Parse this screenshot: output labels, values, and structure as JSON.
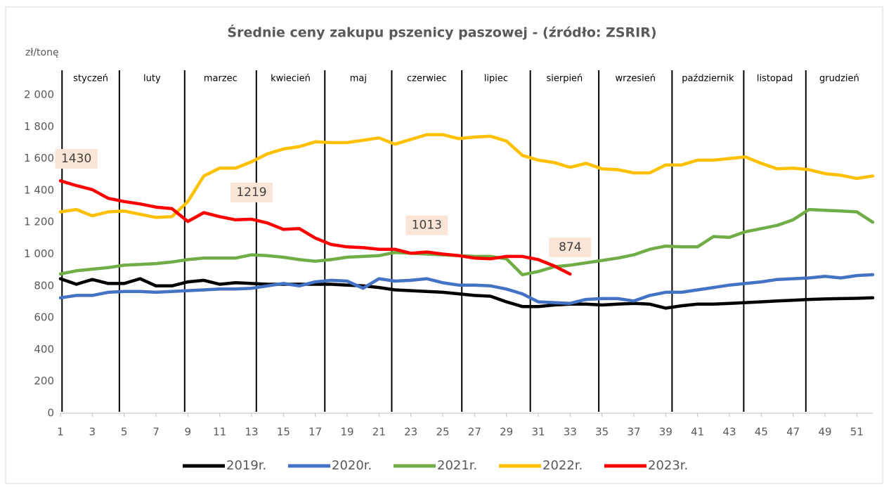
{
  "chart_data": {
    "type": "line",
    "title": "Średnie ceny zakupu pszenicy paszowej - (źródło: ZSRIR)",
    "y_label": "zł/tonę",
    "months": [
      "styczeń",
      "luty",
      "marzec",
      "kwiecień",
      "maj",
      "czerwiec",
      "lipiec",
      "sierpień",
      "wrzesień",
      "październik",
      "listopad",
      "grudzień"
    ],
    "month_lines": [
      1.1,
      4.7,
      8.8,
      13.3,
      17.6,
      21.8,
      26.2,
      30.5,
      34.8,
      39.4,
      43.9,
      47.8
    ],
    "x": [
      1,
      2,
      3,
      4,
      5,
      6,
      7,
      8,
      9,
      10,
      11,
      12,
      13,
      14,
      15,
      16,
      17,
      18,
      19,
      20,
      21,
      22,
      23,
      24,
      25,
      26,
      27,
      28,
      29,
      30,
      31,
      32,
      33,
      34,
      35,
      36,
      37,
      38,
      39,
      40,
      41,
      42,
      43,
      44,
      45,
      46,
      47,
      48,
      49,
      50,
      51,
      52
    ],
    "xlim": [
      1,
      52
    ],
    "xticks": [
      1,
      3,
      5,
      7,
      9,
      11,
      13,
      15,
      17,
      19,
      21,
      23,
      25,
      27,
      29,
      31,
      33,
      35,
      37,
      39,
      41,
      43,
      45,
      47,
      49,
      51
    ],
    "ylim": [
      0,
      2000
    ],
    "yticks": [
      0,
      200,
      400,
      600,
      800,
      {
        "value": 1000,
        "label": "1 000"
      },
      {
        "value": 1200,
        "label": "1 200"
      },
      {
        "value": 1400,
        "label": "1 400"
      },
      {
        "value": 1600,
        "label": "1 600"
      },
      {
        "value": 1800,
        "label": "1 800"
      },
      {
        "value": 2000,
        "label": "2 000"
      }
    ],
    "grid": false,
    "legend": "bottom",
    "series": [
      {
        "name": "2019r.",
        "color": "#000000",
        "values": [
          845,
          810,
          840,
          815,
          815,
          845,
          800,
          800,
          825,
          835,
          810,
          820,
          815,
          810,
          810,
          810,
          810,
          810,
          805,
          800,
          790,
          775,
          770,
          765,
          760,
          750,
          740,
          735,
          700,
          670,
          670,
          680,
          685,
          685,
          680,
          685,
          690,
          685,
          660,
          675,
          685,
          685,
          690,
          695,
          700,
          705,
          710,
          715,
          718,
          720,
          722,
          725
        ]
      },
      {
        "name": "2020r.",
        "color": "#4472c4",
        "values": [
          725,
          740,
          740,
          760,
          765,
          765,
          760,
          765,
          770,
          775,
          780,
          780,
          785,
          800,
          815,
          800,
          825,
          835,
          830,
          785,
          845,
          830,
          835,
          845,
          820,
          805,
          805,
          800,
          780,
          750,
          700,
          695,
          690,
          715,
          720,
          720,
          705,
          740,
          760,
          760,
          775,
          790,
          805,
          815,
          825,
          840,
          845,
          850,
          860,
          850,
          865,
          870
        ]
      },
      {
        "name": "2021r.",
        "color": "#70ad47",
        "values": [
          875,
          895,
          905,
          915,
          930,
          935,
          940,
          950,
          965,
          975,
          975,
          975,
          995,
          990,
          980,
          965,
          955,
          965,
          980,
          985,
          990,
          1010,
          1005,
          1000,
          995,
          990,
          985,
          985,
          970,
          870,
          890,
          920,
          930,
          945,
          960,
          975,
          995,
          1030,
          1050,
          1045,
          1045,
          1110,
          1105,
          1140,
          1160,
          1180,
          1215,
          1280,
          1275,
          1270,
          1265,
          1200
        ]
      },
      {
        "name": "2022r.",
        "color": "#ffc000",
        "values": [
          1265,
          1280,
          1240,
          1265,
          1270,
          1250,
          1230,
          1235,
          1330,
          1490,
          1540,
          1540,
          1580,
          1630,
          1660,
          1675,
          1705,
          1700,
          1700,
          1715,
          1730,
          1690,
          1720,
          1750,
          1750,
          1725,
          1735,
          1740,
          1710,
          1620,
          1590,
          1575,
          1545,
          1570,
          1535,
          1530,
          1510,
          1510,
          1560,
          1560,
          1590,
          1590,
          1600,
          1610,
          1570,
          1535,
          1540,
          1530,
          1505,
          1495,
          1475,
          1490
        ]
      },
      {
        "name": "2023r.",
        "color": "#ff0000",
        "label_indices": [
          1,
          12,
          23,
          32
        ],
        "values": [
          1460,
          1430,
          1405,
          1350,
          1330,
          1315,
          1295,
          1285,
          1205,
          1260,
          1235,
          1215,
          1219,
          1195,
          1155,
          1160,
          1100,
          1060,
          1045,
          1040,
          1030,
          1030,
          1005,
          1013,
          1000,
          990,
          975,
          970,
          985,
          985,
          965,
          925,
          874,
          null,
          null,
          null,
          null,
          null,
          null,
          null,
          null,
          null,
          null,
          null,
          null,
          null,
          null,
          null,
          null,
          null,
          null,
          null
        ]
      }
    ]
  }
}
